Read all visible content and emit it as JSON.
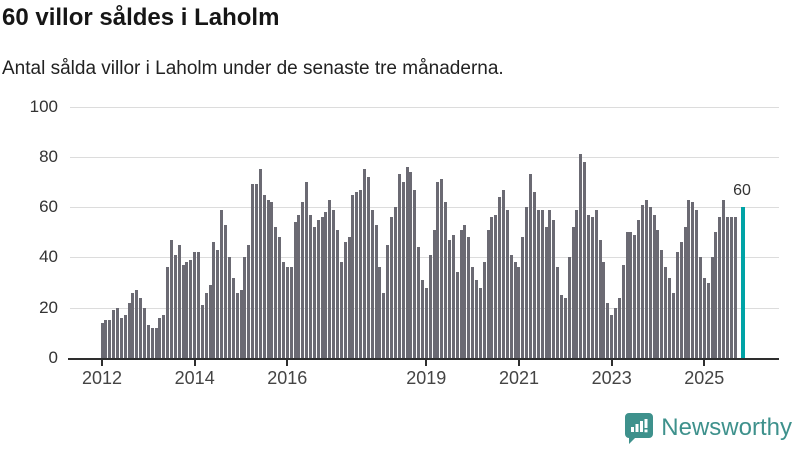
{
  "title": "60 villor såldes i Laholm",
  "subtitle": "Antal sålda villor i Laholm under de senaste tre månaderna.",
  "chart_data": {
    "type": "bar",
    "title": "60 villor såldes i Laholm",
    "subtitle": "Antal sålda villor i Laholm under de senaste tre månaderna.",
    "x_start": "2012-01",
    "x_end": "2025-10",
    "x_freq": "monthly",
    "values": [
      14,
      15,
      15,
      19,
      20,
      16,
      17,
      22,
      26,
      27,
      24,
      20,
      13,
      12,
      12,
      16,
      17,
      36,
      47,
      41,
      45,
      37,
      38,
      39,
      42,
      42,
      21,
      26,
      29,
      46,
      43,
      59,
      53,
      40,
      32,
      26,
      27,
      40,
      45,
      69,
      69,
      75,
      65,
      63,
      62,
      52,
      48,
      38,
      36,
      36,
      54,
      57,
      62,
      70,
      57,
      52,
      55,
      56,
      58,
      63,
      59,
      51,
      38,
      46,
      48,
      65,
      66,
      67,
      75,
      72,
      59,
      53,
      36,
      26,
      45,
      56,
      60,
      73,
      70,
      76,
      74,
      67,
      44,
      31,
      28,
      41,
      51,
      70,
      71,
      62,
      47,
      49,
      34,
      51,
      53,
      48,
      36,
      31,
      28,
      38,
      51,
      56,
      57,
      64,
      67,
      59,
      41,
      38,
      36,
      48,
      60,
      73,
      66,
      59,
      59,
      52,
      59,
      55,
      36,
      25,
      24,
      40,
      52,
      59,
      81,
      78,
      57,
      56,
      59,
      47,
      38,
      22,
      17,
      20,
      24,
      37,
      50,
      50,
      49,
      55,
      61,
      63,
      60,
      57,
      51,
      43,
      36,
      32,
      26,
      42,
      46,
      52,
      63,
      62,
      59,
      40,
      32,
      30,
      40,
      50,
      56,
      63,
      56,
      56,
      56,
      60
    ],
    "highlight": {
      "index": 165,
      "value": 60,
      "label": "60",
      "color": "#00a3a6"
    },
    "bar_color": "#6b6a73",
    "grid": true,
    "ylim": [
      0,
      100
    ],
    "yticks": [
      0,
      20,
      40,
      60,
      80,
      100
    ],
    "xticks": [
      {
        "label": "2012",
        "year": 2012
      },
      {
        "label": "2014",
        "year": 2014
      },
      {
        "label": "2016",
        "year": 2016
      },
      {
        "label": "2019",
        "year": 2019
      },
      {
        "label": "2021",
        "year": 2021
      },
      {
        "label": "2023",
        "year": 2023
      },
      {
        "label": "2025",
        "year": 2025
      }
    ],
    "legend": "none"
  },
  "annotation_label": "60",
  "logo": {
    "text": "Newsworthy",
    "color": "#3e918c",
    "icon_color": "#3e918c"
  }
}
